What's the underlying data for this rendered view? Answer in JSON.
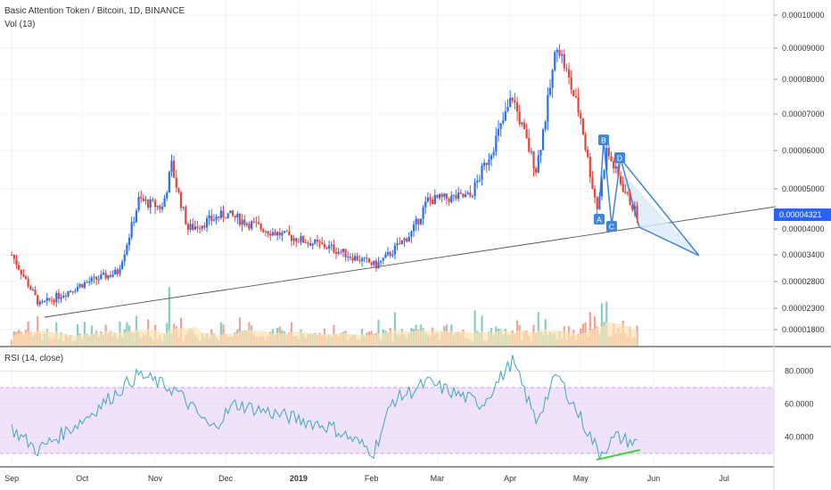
{
  "header": {
    "title": "Basic Attention Token / Bitcoin, 1D, BINANCE",
    "volume_label": "Vol (13)"
  },
  "rsi_label": "RSI (14, close)",
  "current_price": "0.00004321",
  "colors": {
    "up": "#2a6ff0",
    "down": "#e8433a",
    "vol_up": "#76c3b4",
    "vol_down": "#f0907f",
    "vol_ma": "#fde3b4",
    "rsi_line": "#3fa6b9",
    "rsi_band": "#f1e2fb",
    "rsi_band_edge": "#c9a3e6",
    "trendline": "#555555",
    "pattern": "#3f86d8",
    "pattern_fill": "#dbeaf7",
    "divergence": "#3cd43c",
    "badge": "#2962ff"
  },
  "chart_data": [
    {
      "type": "candlestick",
      "title": "Basic Attention Token / Bitcoin, 1D, BINANCE",
      "x_ticks": [
        "Sep",
        "Oct",
        "Nov",
        "Dec",
        "2019",
        "Feb",
        "Mar",
        "Apr",
        "May",
        "Jun",
        "Jul"
      ],
      "y_ticks": [
        "0.00010000",
        "0.00009000",
        "0.00008000",
        "0.00007000",
        "0.00006000",
        "0.00005000",
        "0.00004000",
        "0.00003400",
        "0.00002800",
        "0.00002300",
        "0.00001800"
      ],
      "scale": "log",
      "close_path_approx": [
        {
          "date": "2018-09-01",
          "close": 3.4e-05
        },
        {
          "date": "2018-09-13",
          "close": 2.35e-05
        },
        {
          "date": "2018-10-01",
          "close": 2.75e-05
        },
        {
          "date": "2018-10-16",
          "close": 3e-05
        },
        {
          "date": "2018-10-25",
          "close": 4.7e-05
        },
        {
          "date": "2018-11-04",
          "close": 4.5e-05
        },
        {
          "date": "2018-11-08",
          "close": 5.6e-05
        },
        {
          "date": "2018-11-15",
          "close": 4e-05
        },
        {
          "date": "2018-12-01",
          "close": 4.35e-05
        },
        {
          "date": "2018-12-22",
          "close": 3.9e-05
        },
        {
          "date": "2019-01-15",
          "close": 3.55e-05
        },
        {
          "date": "2019-02-03",
          "close": 3.15e-05
        },
        {
          "date": "2019-02-18",
          "close": 3.9e-05
        },
        {
          "date": "2019-02-25",
          "close": 4.7e-05
        },
        {
          "date": "2019-03-15",
          "close": 4.8e-05
        },
        {
          "date": "2019-04-02",
          "close": 7.5e-05
        },
        {
          "date": "2019-04-12",
          "close": 5.5e-05
        },
        {
          "date": "2019-04-21",
          "close": 9.2e-05
        },
        {
          "date": "2019-05-01",
          "close": 6.9e-05
        },
        {
          "date": "2019-05-08",
          "close": 4.5e-05
        },
        {
          "date": "2019-05-12",
          "close": 6e-05
        },
        {
          "date": "2019-05-25",
          "close": 4.321e-05
        }
      ],
      "current_price": 4.321e-05,
      "pattern_points": [
        "A",
        "B",
        "C",
        "D"
      ]
    },
    {
      "type": "bar",
      "title": "Vol (13)",
      "note": "volume histogram with 13-period moving average"
    },
    {
      "type": "line",
      "title": "RSI (14, close)",
      "y_ticks": [
        "80.0000",
        "60.0000",
        "40.0000"
      ],
      "upper_band": 70,
      "lower_band": 30,
      "values_approx": [
        {
          "date": "2018-09-01",
          "rsi": 45
        },
        {
          "date": "2018-09-12",
          "rsi": 32
        },
        {
          "date": "2018-10-01",
          "rsi": 50
        },
        {
          "date": "2018-10-25",
          "rsi": 78
        },
        {
          "date": "2018-11-10",
          "rsi": 68
        },
        {
          "date": "2018-11-25",
          "rsi": 45
        },
        {
          "date": "2018-12-05",
          "rsi": 60
        },
        {
          "date": "2019-01-15",
          "rsi": 46
        },
        {
          "date": "2019-02-02",
          "rsi": 31
        },
        {
          "date": "2019-02-10",
          "rsi": 62
        },
        {
          "date": "2019-02-25",
          "rsi": 73
        },
        {
          "date": "2019-03-20",
          "rsi": 60
        },
        {
          "date": "2019-04-02",
          "rsi": 86
        },
        {
          "date": "2019-04-12",
          "rsi": 50
        },
        {
          "date": "2019-04-21",
          "rsi": 78
        },
        {
          "date": "2019-05-09",
          "rsi": 30
        },
        {
          "date": "2019-05-16",
          "rsi": 40
        },
        {
          "date": "2019-05-25",
          "rsi": 36
        }
      ]
    }
  ]
}
